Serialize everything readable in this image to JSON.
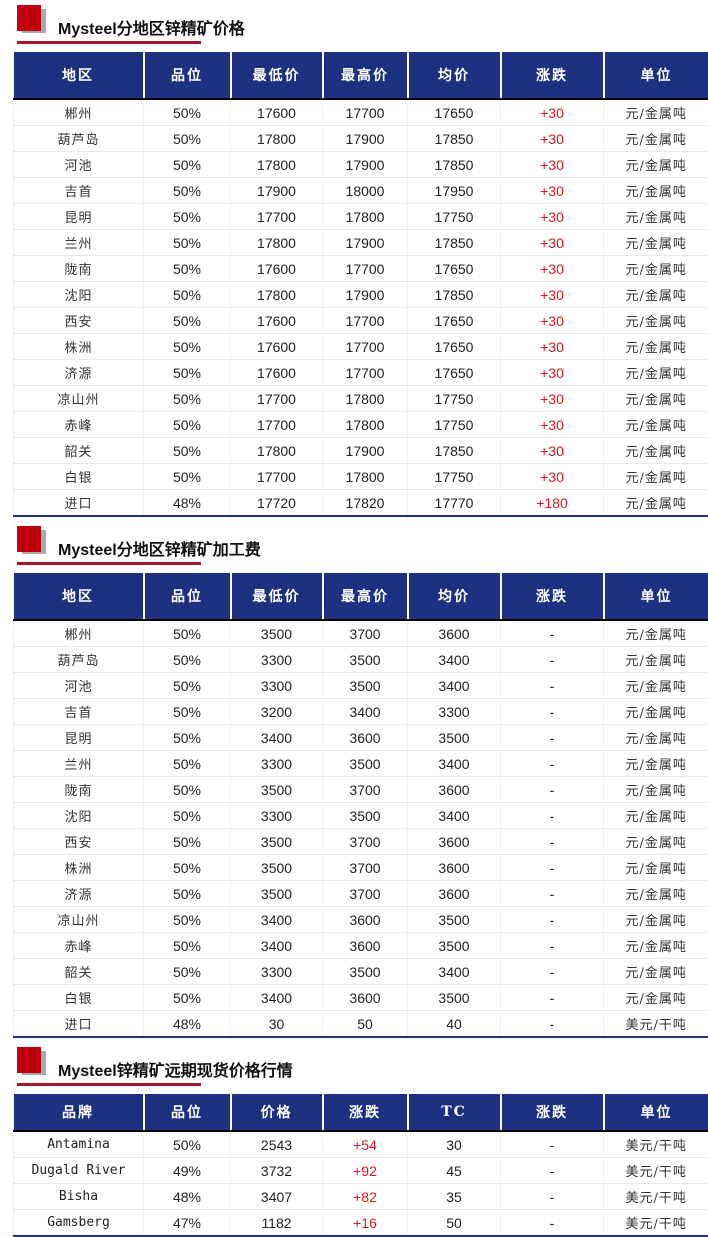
{
  "colors": {
    "header_bg": "#1c3280",
    "accent_red": "#c00010",
    "up": "#e0141e"
  },
  "sections": [
    {
      "title": "Mysteel分地区锌精矿价格",
      "headers": [
        "地区",
        "品位",
        "最低价",
        "最高价",
        "均价",
        "涨跌",
        "单位"
      ],
      "rows": [
        [
          "郴州",
          "50%",
          "17600",
          "17700",
          "17650",
          "+30",
          "元/金属吨"
        ],
        [
          "葫芦岛",
          "50%",
          "17800",
          "17900",
          "17850",
          "+30",
          "元/金属吨"
        ],
        [
          "河池",
          "50%",
          "17800",
          "17900",
          "17850",
          "+30",
          "元/金属吨"
        ],
        [
          "吉首",
          "50%",
          "17900",
          "18000",
          "17950",
          "+30",
          "元/金属吨"
        ],
        [
          "昆明",
          "50%",
          "17700",
          "17800",
          "17750",
          "+30",
          "元/金属吨"
        ],
        [
          "兰州",
          "50%",
          "17800",
          "17900",
          "17850",
          "+30",
          "元/金属吨"
        ],
        [
          "陇南",
          "50%",
          "17600",
          "17700",
          "17650",
          "+30",
          "元/金属吨"
        ],
        [
          "沈阳",
          "50%",
          "17800",
          "17900",
          "17850",
          "+30",
          "元/金属吨"
        ],
        [
          "西安",
          "50%",
          "17600",
          "17700",
          "17650",
          "+30",
          "元/金属吨"
        ],
        [
          "株洲",
          "50%",
          "17600",
          "17700",
          "17650",
          "+30",
          "元/金属吨"
        ],
        [
          "济源",
          "50%",
          "17600",
          "17700",
          "17650",
          "+30",
          "元/金属吨"
        ],
        [
          "凉山州",
          "50%",
          "17700",
          "17800",
          "17750",
          "+30",
          "元/金属吨"
        ],
        [
          "赤峰",
          "50%",
          "17700",
          "17800",
          "17750",
          "+30",
          "元/金属吨"
        ],
        [
          "韶关",
          "50%",
          "17800",
          "17900",
          "17850",
          "+30",
          "元/金属吨"
        ],
        [
          "白银",
          "50%",
          "17700",
          "17800",
          "17750",
          "+30",
          "元/金属吨"
        ],
        [
          "进口",
          "48%",
          "17720",
          "17820",
          "17770",
          "+180",
          "元/金属吨"
        ]
      ]
    },
    {
      "title": "Mysteel分地区锌精矿加工费",
      "headers": [
        "地区",
        "品位",
        "最低价",
        "最高价",
        "均价",
        "涨跌",
        "单位"
      ],
      "rows": [
        [
          "郴州",
          "50%",
          "3500",
          "3700",
          "3600",
          "-",
          "元/金属吨"
        ],
        [
          "葫芦岛",
          "50%",
          "3300",
          "3500",
          "3400",
          "-",
          "元/金属吨"
        ],
        [
          "河池",
          "50%",
          "3300",
          "3500",
          "3400",
          "-",
          "元/金属吨"
        ],
        [
          "吉首",
          "50%",
          "3200",
          "3400",
          "3300",
          "-",
          "元/金属吨"
        ],
        [
          "昆明",
          "50%",
          "3400",
          "3600",
          "3500",
          "-",
          "元/金属吨"
        ],
        [
          "兰州",
          "50%",
          "3300",
          "3500",
          "3400",
          "-",
          "元/金属吨"
        ],
        [
          "陇南",
          "50%",
          "3500",
          "3700",
          "3600",
          "-",
          "元/金属吨"
        ],
        [
          "沈阳",
          "50%",
          "3300",
          "3500",
          "3400",
          "-",
          "元/金属吨"
        ],
        [
          "西安",
          "50%",
          "3500",
          "3700",
          "3600",
          "-",
          "元/金属吨"
        ],
        [
          "株洲",
          "50%",
          "3500",
          "3700",
          "3600",
          "-",
          "元/金属吨"
        ],
        [
          "济源",
          "50%",
          "3500",
          "3700",
          "3600",
          "-",
          "元/金属吨"
        ],
        [
          "凉山州",
          "50%",
          "3400",
          "3600",
          "3500",
          "-",
          "元/金属吨"
        ],
        [
          "赤峰",
          "50%",
          "3400",
          "3600",
          "3500",
          "-",
          "元/金属吨"
        ],
        [
          "韶关",
          "50%",
          "3300",
          "3500",
          "3400",
          "-",
          "元/金属吨"
        ],
        [
          "白银",
          "50%",
          "3400",
          "3600",
          "3500",
          "-",
          "元/金属吨"
        ],
        [
          "进口",
          "48%",
          "30",
          "50",
          "40",
          "-",
          "美元/干吨"
        ]
      ]
    },
    {
      "title": "Mysteel锌精矿远期现货价格行情",
      "headers": [
        "品牌",
        "品位",
        "价格",
        "涨跌",
        "TC",
        "涨跌",
        "单位"
      ],
      "rows": [
        [
          "Antamina",
          "50%",
          "2543",
          "+54",
          "30",
          "-",
          "美元/干吨"
        ],
        [
          "Dugald River",
          "49%",
          "3732",
          "+92",
          "45",
          "-",
          "美元/干吨"
        ],
        [
          "Bisha",
          "48%",
          "3407",
          "+82",
          "35",
          "-",
          "美元/干吨"
        ],
        [
          "Gamsberg",
          "47%",
          "1182",
          "+16",
          "50",
          "-",
          "美元/干吨"
        ]
      ]
    }
  ]
}
